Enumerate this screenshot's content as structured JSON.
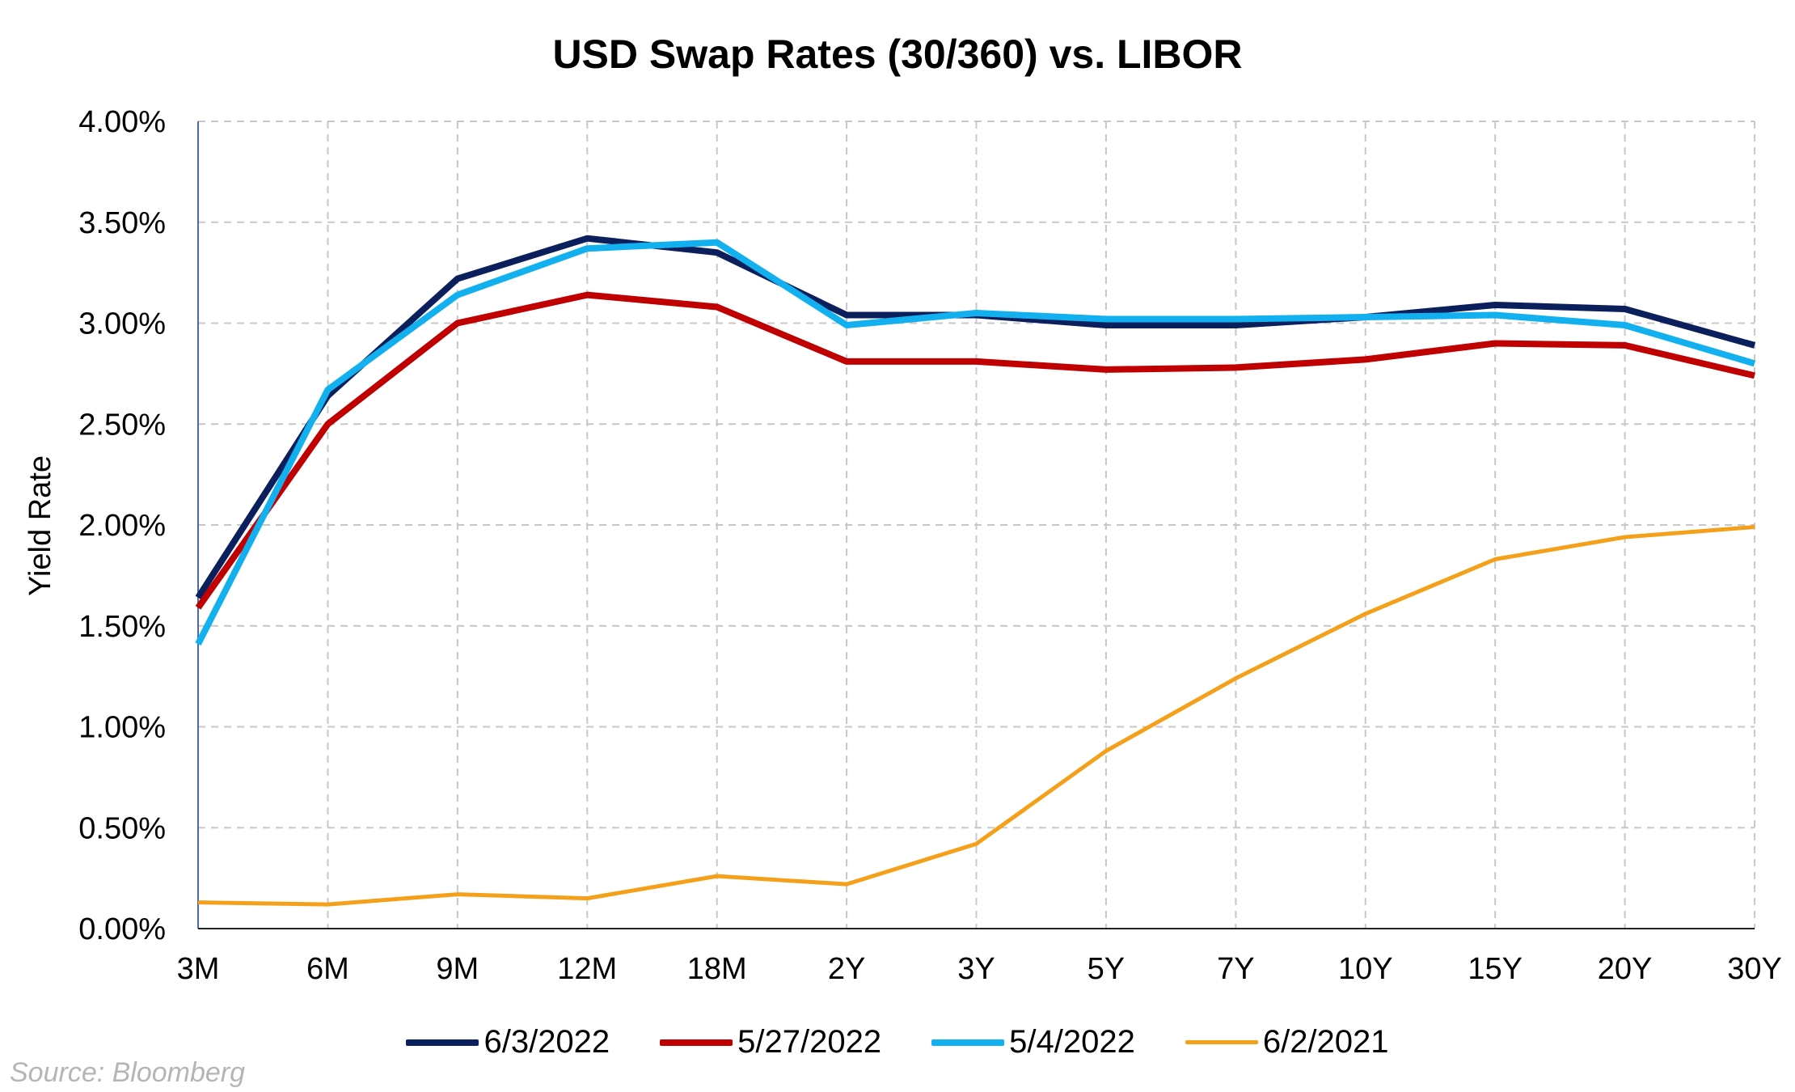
{
  "chart_data": {
    "type": "line",
    "title": "USD Swap Rates (30/360) vs. LIBOR",
    "xlabel": "",
    "ylabel": "Yield Rate",
    "categories": [
      "3M",
      "6M",
      "9M",
      "12M",
      "18M",
      "2Y",
      "3Y",
      "5Y",
      "7Y",
      "10Y",
      "15Y",
      "20Y",
      "30Y"
    ],
    "ylim": [
      0,
      0.04
    ],
    "yticks": [
      "0.00%",
      "0.50%",
      "1.00%",
      "1.50%",
      "2.00%",
      "2.50%",
      "3.00%",
      "3.50%",
      "4.00%"
    ],
    "grid": true,
    "legend_position": "bottom",
    "series": [
      {
        "name": "6/3/2022",
        "color": "#0b1f5c",
        "values": [
          1.64,
          2.64,
          3.22,
          3.42,
          3.35,
          3.04,
          3.04,
          2.99,
          2.99,
          3.03,
          3.09,
          3.07,
          2.89
        ]
      },
      {
        "name": "5/27/2022",
        "color": "#c00000",
        "values": [
          1.59,
          2.5,
          3.0,
          3.14,
          3.08,
          2.81,
          2.81,
          2.77,
          2.78,
          2.82,
          2.9,
          2.89,
          2.74
        ]
      },
      {
        "name": "5/4/2022",
        "color": "#12b0ef",
        "values": [
          1.41,
          2.67,
          3.14,
          3.37,
          3.4,
          2.99,
          3.05,
          3.02,
          3.02,
          3.03,
          3.04,
          2.99,
          2.8
        ]
      },
      {
        "name": "6/2/2021",
        "color": "#f5a01a",
        "values": [
          0.13,
          0.12,
          0.17,
          0.15,
          0.26,
          0.22,
          0.42,
          0.88,
          1.24,
          1.56,
          1.83,
          1.94,
          1.99
        ]
      }
    ]
  },
  "source": "Source: Bloomberg"
}
